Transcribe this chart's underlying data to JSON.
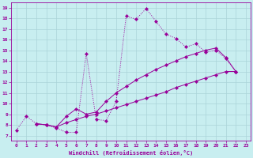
{
  "title": "",
  "xlabel": "Windchill (Refroidissement éolien,°C)",
  "bg_color": "#c8eef0",
  "grid_color": "#aad4d8",
  "line_color": "#990099",
  "xlim": [
    -0.5,
    23.5
  ],
  "ylim": [
    6.5,
    19.5
  ],
  "xticks": [
    0,
    1,
    2,
    3,
    4,
    5,
    6,
    7,
    8,
    9,
    10,
    11,
    12,
    13,
    14,
    15,
    16,
    17,
    18,
    19,
    20,
    21,
    22,
    23
  ],
  "yticks": [
    7,
    8,
    9,
    10,
    11,
    12,
    13,
    14,
    15,
    16,
    17,
    18,
    19
  ],
  "line1_x": [
    0,
    1,
    2,
    3,
    4,
    5,
    6,
    7,
    8,
    9,
    10,
    11,
    12,
    13,
    14,
    15,
    16,
    17,
    18,
    19,
    20,
    21,
    22
  ],
  "line1_y": [
    7.5,
    8.8,
    8.1,
    8.0,
    7.7,
    7.3,
    7.3,
    14.7,
    8.5,
    8.4,
    10.2,
    18.2,
    17.9,
    18.9,
    17.7,
    16.5,
    16.1,
    15.3,
    15.6,
    14.8,
    15.0,
    14.2,
    13.0
  ],
  "line2_x": [
    2,
    3,
    4,
    5,
    6,
    7,
    8,
    9,
    10,
    11,
    12,
    13,
    14,
    15,
    16,
    17,
    18,
    19,
    20,
    21,
    22
  ],
  "line2_y": [
    8.1,
    8.0,
    7.8,
    8.8,
    9.5,
    9.0,
    9.2,
    10.2,
    11.0,
    11.6,
    12.2,
    12.7,
    13.2,
    13.6,
    14.0,
    14.4,
    14.7,
    15.0,
    15.2,
    14.3,
    13.0
  ],
  "line3_x": [
    2,
    3,
    4,
    5,
    6,
    7,
    8,
    9,
    10,
    11,
    12,
    13,
    14,
    15,
    16,
    17,
    18,
    19,
    20,
    21,
    22
  ],
  "line3_y": [
    8.1,
    8.0,
    7.8,
    8.2,
    8.5,
    8.8,
    9.0,
    9.3,
    9.6,
    9.9,
    10.2,
    10.5,
    10.8,
    11.1,
    11.5,
    11.8,
    12.1,
    12.4,
    12.7,
    13.0,
    13.0
  ]
}
